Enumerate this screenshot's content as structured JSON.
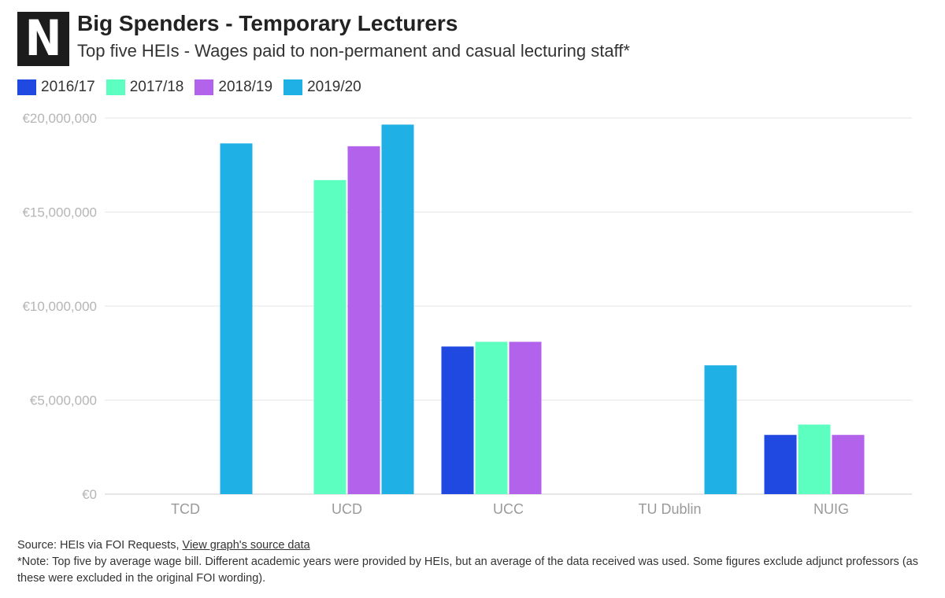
{
  "logo": {
    "letter": "N"
  },
  "header": {
    "title": "Big Spenders - Temporary Lecturers",
    "subtitle": "Top five HEIs - Wages paid to non-permanent and casual lecturing staff*"
  },
  "colors": {
    "2016/17": "#1f49e0",
    "2017/18": "#5cffc0",
    "2018/19": "#b262eb",
    "2019/20": "#1fb0e5",
    "gridline": "#e6e6e6",
    "axis": "#cccccc"
  },
  "chart_data": {
    "type": "bar",
    "title": "Big Spenders - Temporary Lecturers",
    "subtitle": "Top five HEIs - Wages paid to non-permanent and casual lecturing staff*",
    "xlabel": "",
    "ylabel": "",
    "categories": [
      "TCD",
      "UCD",
      "UCC",
      "TU Dublin",
      "NUIG"
    ],
    "series": [
      {
        "name": "2016/17",
        "values": [
          null,
          null,
          7850000,
          null,
          3150000
        ]
      },
      {
        "name": "2017/18",
        "values": [
          null,
          16700000,
          8100000,
          null,
          3700000
        ]
      },
      {
        "name": "2018/19",
        "values": [
          null,
          18500000,
          8100000,
          null,
          3150000
        ]
      },
      {
        "name": "2019/20",
        "values": [
          18650000,
          19650000,
          null,
          6850000,
          null
        ]
      }
    ],
    "ylim": [
      0,
      20000000
    ],
    "yticks": [
      0,
      5000000,
      10000000,
      15000000,
      20000000
    ],
    "ytick_labels": [
      "€0",
      "€5,000,000",
      "€10,000,000",
      "€15,000,000",
      "€20,000,000"
    ],
    "grid": true,
    "legend": "top-left"
  },
  "footer": {
    "source_prefix": "Source: HEIs via FOI Requests, ",
    "source_link": "View graph's source data",
    "note": "*Note: Top five by average wage bill. Different academic years were provided by HEIs, but an average of the data received was used. Some figures exclude adjunct professors (as these were excluded in the original FOI wording)."
  }
}
